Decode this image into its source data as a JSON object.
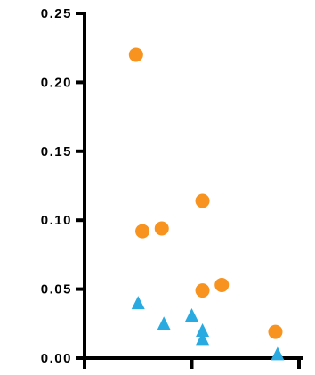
{
  "chart_data": {
    "type": "scatter",
    "title": "",
    "xlabel": "",
    "ylabel": "",
    "ylim": [
      0,
      0.25
    ],
    "xlim": [
      0,
      1
    ],
    "yticks": [
      "0.00",
      "0.05",
      "0.10",
      "0.15",
      "0.20",
      "0.25"
    ],
    "ytick_values": [
      0,
      0.05,
      0.1,
      0.15,
      0.2,
      0.25
    ],
    "xtick_values": [
      0,
      0.5,
      1
    ],
    "grid": false,
    "series": [
      {
        "marker": "circle",
        "color": "#F7931E",
        "points": [
          {
            "x": 0.24,
            "y": 0.22
          },
          {
            "x": 0.27,
            "y": 0.092
          },
          {
            "x": 0.36,
            "y": 0.094
          },
          {
            "x": 0.55,
            "y": 0.114
          },
          {
            "x": 0.55,
            "y": 0.049
          },
          {
            "x": 0.64,
            "y": 0.053
          },
          {
            "x": 0.89,
            "y": 0.019
          }
        ]
      },
      {
        "marker": "triangle",
        "color": "#29ABE2",
        "points": [
          {
            "x": 0.25,
            "y": 0.04
          },
          {
            "x": 0.37,
            "y": 0.025
          },
          {
            "x": 0.5,
            "y": 0.031
          },
          {
            "x": 0.55,
            "y": 0.02
          },
          {
            "x": 0.55,
            "y": 0.014
          },
          {
            "x": 0.9,
            "y": 0.003
          }
        ]
      }
    ]
  }
}
